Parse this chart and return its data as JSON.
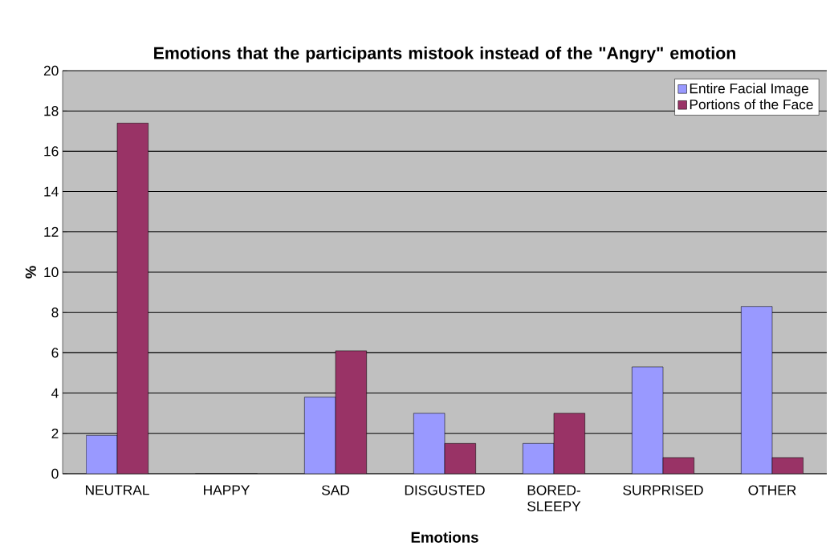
{
  "chart_data": {
    "type": "bar",
    "title": "Emotions that the participants mistook instead of the \"Angry\" emotion",
    "xlabel": "Emotions",
    "ylabel": "%",
    "categories": [
      "NEUTRAL",
      "HAPPY",
      "SAD",
      "DISGUSTED",
      "BORED-SLEEPY",
      "SURPRISED",
      "OTHER"
    ],
    "series": [
      {
        "name": "Entire Facial Image",
        "color": "#9999ff",
        "values": [
          1.9,
          0,
          3.8,
          3.0,
          1.5,
          5.3,
          8.3
        ]
      },
      {
        "name": "Portions of the Face",
        "color": "#993366",
        "values": [
          17.4,
          0,
          6.1,
          1.5,
          3.0,
          0.8,
          0.8
        ]
      }
    ],
    "ylim": [
      0,
      20
    ],
    "yticks": [
      0,
      2,
      4,
      6,
      8,
      10,
      12,
      14,
      16,
      18,
      20
    ],
    "grid": "y",
    "legend": "top right"
  }
}
